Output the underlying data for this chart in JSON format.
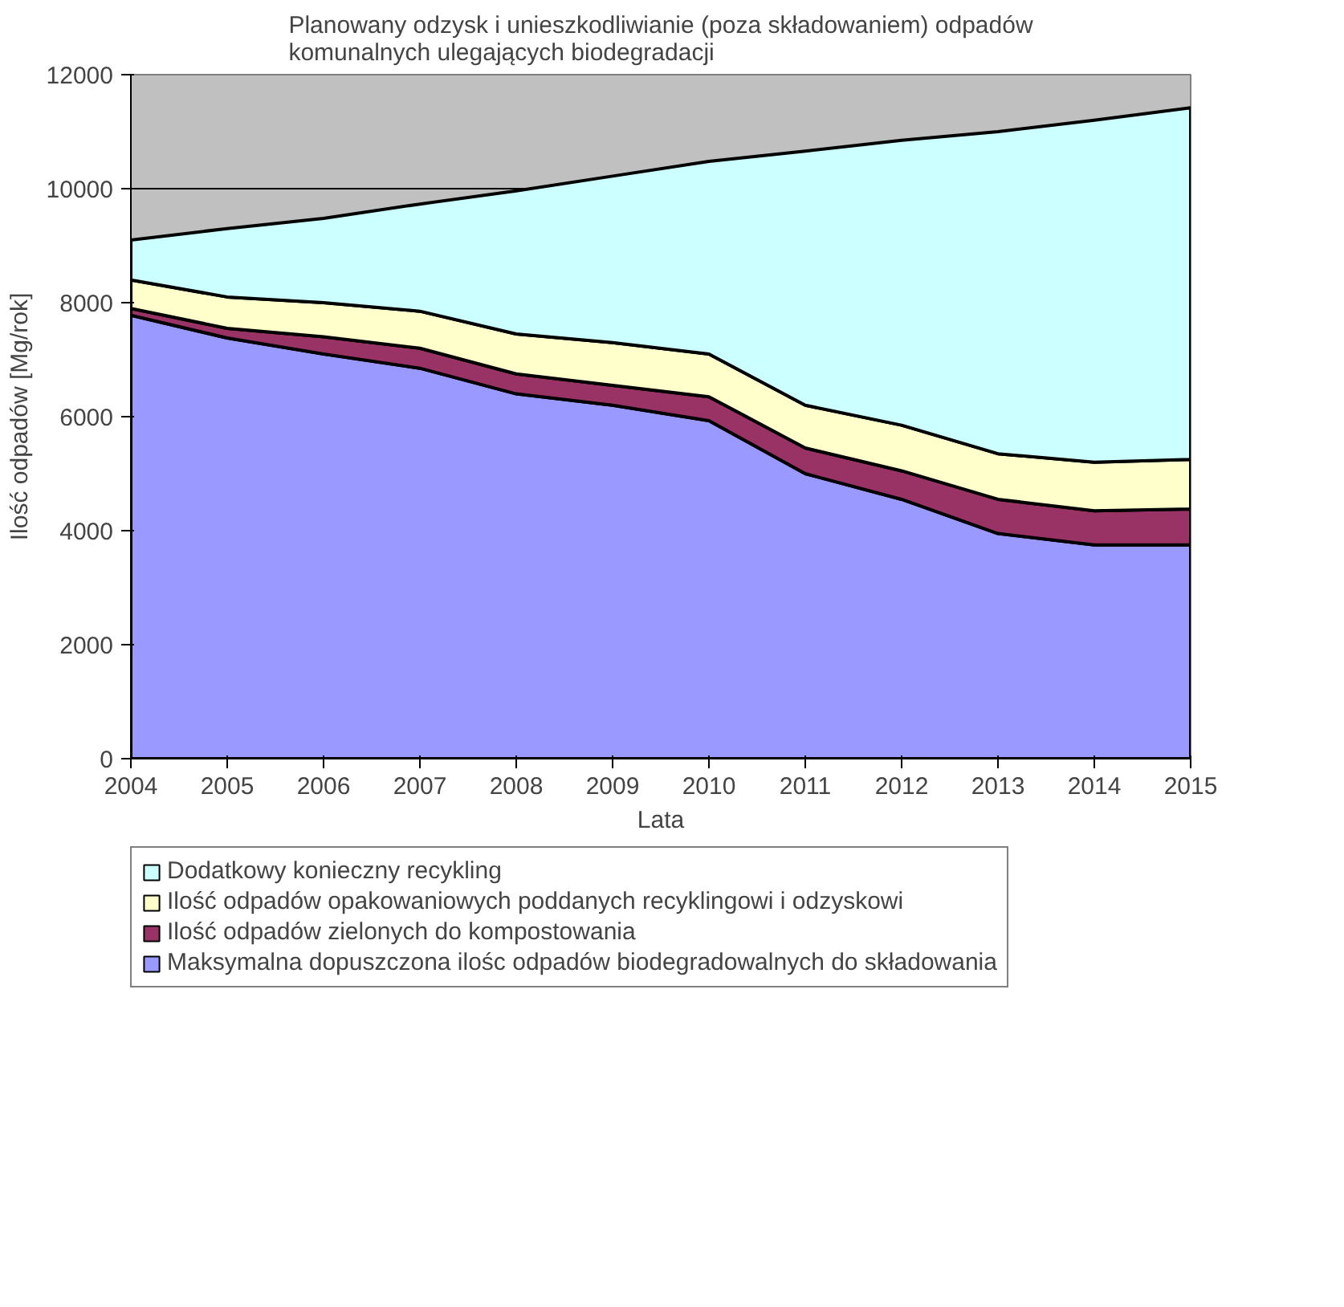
{
  "chart_data": {
    "type": "area",
    "stacked": true,
    "title": "Planowany odzysk i unieszkodliwianie (poza składowaniem) odpadów\nkomunalnych ulegających biodegradacji",
    "xlabel": "Lata",
    "ylabel": "Ilość odpadów [Mg/rok]",
    "x": [
      2004,
      2005,
      2006,
      2007,
      2008,
      2009,
      2010,
      2011,
      2012,
      2013,
      2014,
      2015
    ],
    "xlim": [
      2004,
      2015
    ],
    "xticks": [
      2004,
      2005,
      2006,
      2007,
      2008,
      2009,
      2010,
      2011,
      2012,
      2013,
      2014,
      2015
    ],
    "ylim": [
      0,
      12000
    ],
    "yticks": [
      0,
      2000,
      4000,
      6000,
      8000,
      10000,
      12000
    ],
    "grid": "y",
    "legend": "bottom",
    "series": [
      {
        "name": "Maksymalna dopuszczona ilośc odpadów biodegradowalnych do składowania",
        "color": "#9999ff",
        "values": [
          7780,
          7380,
          7100,
          6850,
          6400,
          6200,
          5930,
          5000,
          4550,
          3950,
          3750,
          3750
        ]
      },
      {
        "name": "Ilość odpadów zielonych do kompostowania",
        "color": "#993366",
        "values": [
          120,
          170,
          300,
          350,
          350,
          350,
          420,
          450,
          500,
          600,
          600,
          630
        ]
      },
      {
        "name": "Ilość odpadów opakowaniowych poddanych recyklingowi i odzyskowi",
        "color": "#ffffcc",
        "values": [
          500,
          550,
          600,
          650,
          700,
          750,
          750,
          750,
          800,
          800,
          850,
          870
        ]
      },
      {
        "name": "Dodatkowy konieczny recykling",
        "color": "#ccffff",
        "values": [
          700,
          1200,
          1480,
          1880,
          2510,
          2920,
          3380,
          4460,
          5000,
          5650,
          6000,
          6170
        ]
      }
    ]
  }
}
